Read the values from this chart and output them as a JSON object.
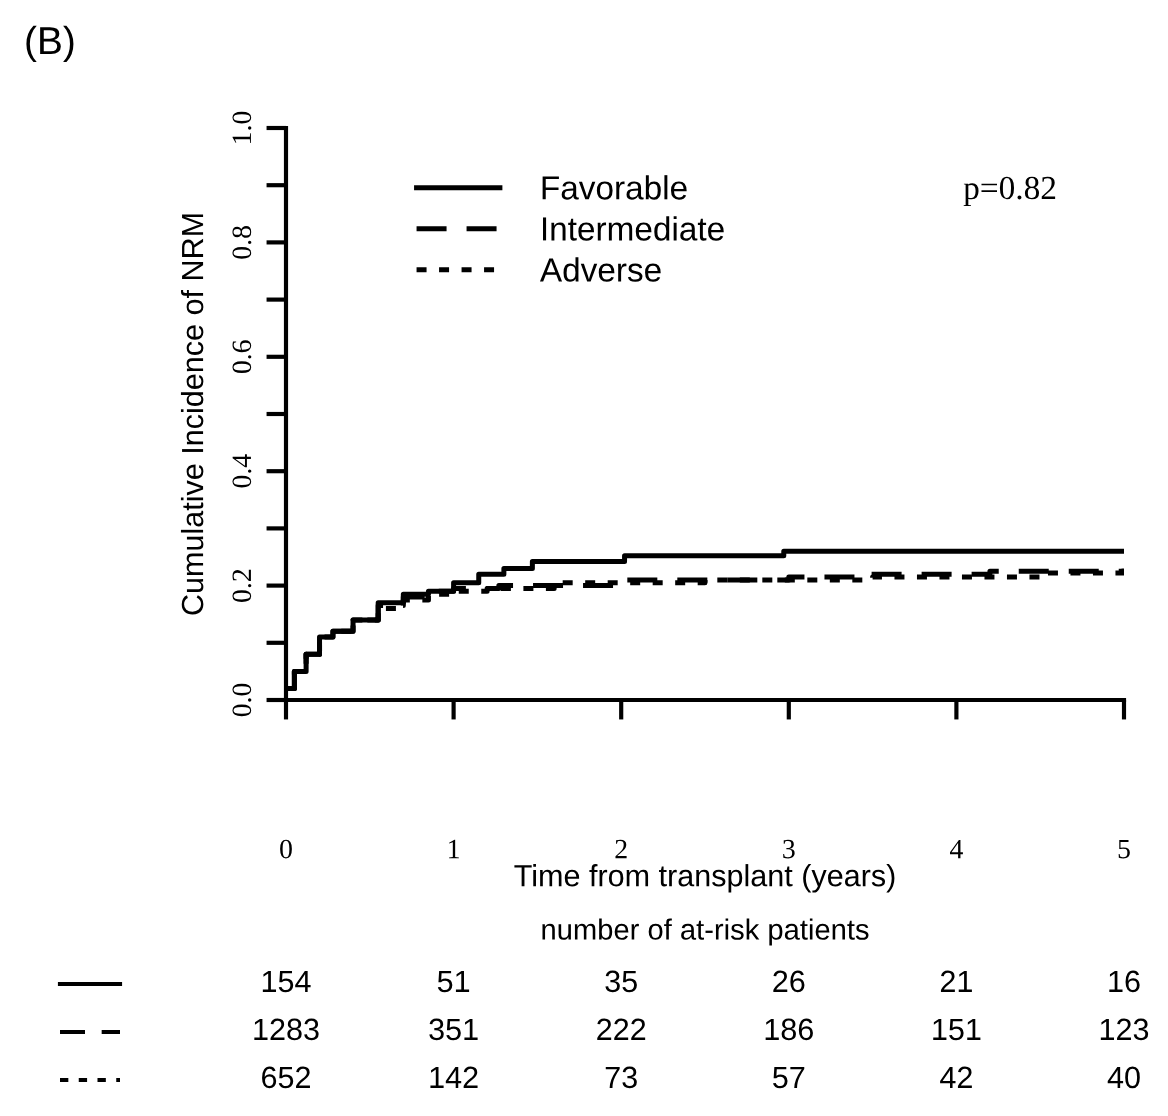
{
  "chart_data": {
    "type": "step",
    "title": "(B)",
    "xlabel": "Time from transplant (years)",
    "ylabel": "Cumulative Incidence of NRM",
    "xlim": [
      0,
      5
    ],
    "ylim": [
      0,
      1
    ],
    "xticks": [
      0,
      1,
      2,
      3,
      4,
      5
    ],
    "yticks": [
      {
        "value": 0,
        "label": "0.0"
      },
      {
        "value": 0.1,
        "label": null
      },
      {
        "value": 0.2,
        "label": "0.2"
      },
      {
        "value": 0.3,
        "label": null
      },
      {
        "value": 0.4,
        "label": "0.4"
      },
      {
        "value": 0.5,
        "label": null
      },
      {
        "value": 0.6,
        "label": "0.6"
      },
      {
        "value": 0.7,
        "label": null
      },
      {
        "value": 0.8,
        "label": "0.8"
      },
      {
        "value": 0.9,
        "label": null
      },
      {
        "value": 1.0,
        "label": "1.0"
      }
    ],
    "grid": false,
    "legend": "top left",
    "series": [
      {
        "name": "Favorable",
        "color": "#000000",
        "line_style": "solid",
        "x": [
          0,
          0.05,
          0.12,
          0.2,
          0.28,
          0.4,
          0.55,
          0.7,
          0.85,
          1.0,
          1.15,
          1.3,
          1.47,
          2.02,
          2.97,
          5
        ],
        "values": [
          0.02,
          0.05,
          0.08,
          0.11,
          0.12,
          0.14,
          0.17,
          0.185,
          0.19,
          0.205,
          0.22,
          0.23,
          0.242,
          0.252,
          0.26,
          0.26
        ]
      },
      {
        "name": "Intermediate",
        "color": "#000000",
        "line_style": "dashed",
        "x": [
          0,
          0.05,
          0.12,
          0.2,
          0.28,
          0.4,
          0.55,
          0.7,
          0.85,
          1.0,
          1.27,
          2.0,
          3.0,
          3.44,
          4.2,
          5
        ],
        "values": [
          0.02,
          0.05,
          0.08,
          0.11,
          0.12,
          0.14,
          0.165,
          0.18,
          0.19,
          0.195,
          0.2,
          0.21,
          0.215,
          0.22,
          0.225,
          0.23
        ]
      },
      {
        "name": "Adverse",
        "color": "#000000",
        "line_style": "dotted",
        "x": [
          0,
          0.05,
          0.12,
          0.2,
          0.28,
          0.4,
          0.55,
          0.7,
          0.85,
          1.0,
          1.2,
          1.6,
          2.5,
          3.5,
          4.5,
          5
        ],
        "values": [
          0.02,
          0.05,
          0.08,
          0.11,
          0.12,
          0.14,
          0.16,
          0.175,
          0.185,
          0.19,
          0.195,
          0.205,
          0.21,
          0.215,
          0.222,
          0.225
        ]
      }
    ],
    "annotations": [
      "p=0.82",
      "number of at-risk patients",
      "154",
      "51",
      "35",
      "26",
      "21",
      "16",
      "1283",
      "351",
      "222",
      "186",
      "151",
      "123",
      "652",
      "142",
      "73",
      "57",
      "42",
      "40"
    ]
  }
}
